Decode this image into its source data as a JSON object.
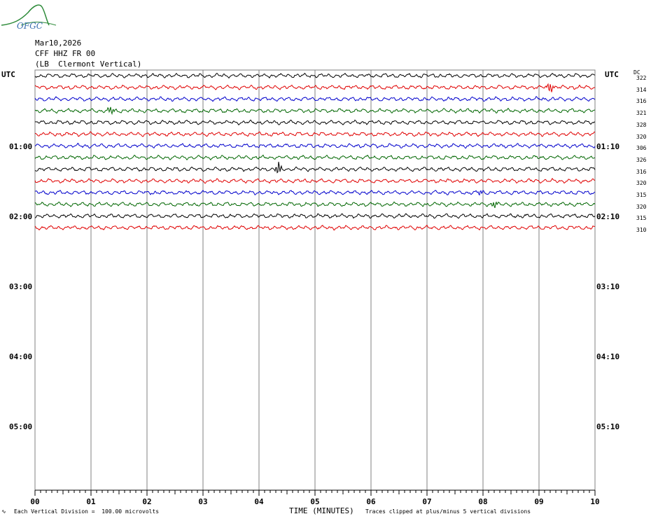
{
  "logo_text": "OFGC",
  "header": {
    "date": "Mar10,2026",
    "station": "CFF HHZ FR 00",
    "location": "(LB  Clermont Vertical)"
  },
  "utc_left": "UTC",
  "utc_right": "UTC",
  "dc_label": "DC",
  "time_labels_left": [
    "01:00",
    "02:00",
    "03:00",
    "04:00",
    "05:00"
  ],
  "time_labels_right": [
    "01:10",
    "02:10",
    "03:10",
    "04:10",
    "05:10"
  ],
  "footer": {
    "left": "Each Vertical Division =  100.00 microvolts",
    "xlabel": "TIME (MINUTES)",
    "right": "Traces clipped at plus/minus 5 vertical divisions"
  },
  "colors": {
    "black": "#000000",
    "red": "#e00000",
    "blue": "#0000cc",
    "green": "#006600",
    "grid": "#808080"
  },
  "chart_data": {
    "type": "line",
    "xlabel": "TIME (MINUTES)",
    "x_ticks": [
      "00",
      "01",
      "02",
      "03",
      "04",
      "05",
      "06",
      "07",
      "08",
      "09",
      "10"
    ],
    "xlim": [
      0,
      10
    ],
    "trace_colors": [
      "black",
      "red",
      "blue",
      "green"
    ],
    "dc_offsets": [
      322,
      314,
      316,
      321,
      328,
      320,
      306,
      326,
      316,
      320,
      315,
      320,
      315,
      310
    ],
    "events": [
      {
        "trace": 1,
        "minute": 9.2,
        "amplitude": 2.5
      },
      {
        "trace": 3,
        "minute": 1.35,
        "amplitude": 2.0
      },
      {
        "trace": 8,
        "minute": 4.35,
        "amplitude": 3.0
      },
      {
        "trace": 10,
        "minute": 7.95,
        "amplitude": 1.2
      },
      {
        "trace": 11,
        "minute": 8.2,
        "amplitude": 1.8
      }
    ]
  }
}
